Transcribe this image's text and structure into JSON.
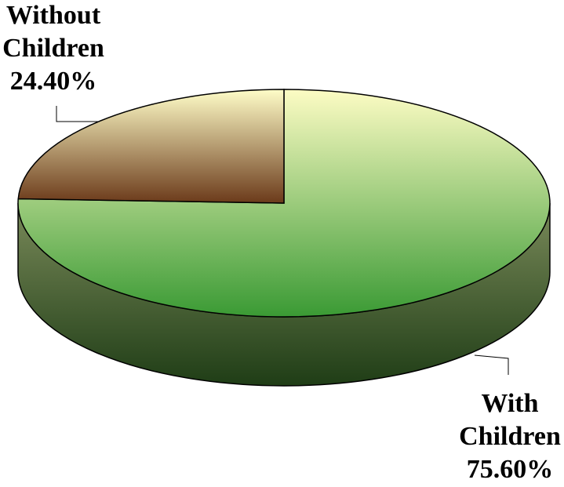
{
  "chart_data": {
    "type": "pie",
    "style": "3d",
    "title": "",
    "slices": [
      {
        "name_line1": "Without",
        "name_line2": "Children",
        "value": 24.4,
        "value_label": "24.40%",
        "color_top": "#fffdc8",
        "color_bottom": "#6b3a1a"
      },
      {
        "name_line1": "With",
        "name_line2": "Children",
        "value": 75.6,
        "value_label": "75.60%",
        "color_top": "#fdfcc4",
        "color_bottom": "#3a9a34"
      }
    ],
    "side_color_light": "#7a8a5a",
    "side_color_dark": "#1f3d16",
    "legend": "none"
  }
}
